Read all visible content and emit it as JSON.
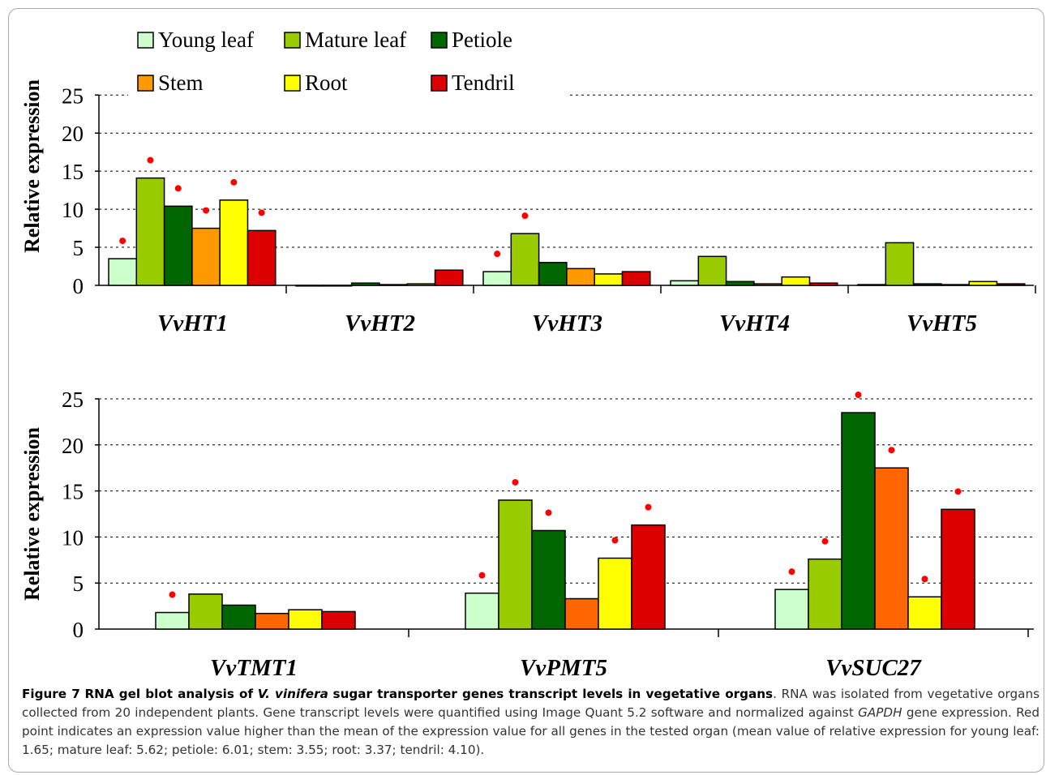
{
  "colors": {
    "young_leaf": "#ccffcc",
    "mature_leaf": "#99cc00",
    "petiole": "#006600",
    "stem_top": "#ff9900",
    "stem_bottom": "#ff6600",
    "root": "#ffff00",
    "tendril": "#dd0000",
    "marker": "#ff0000"
  },
  "caption": {
    "label": "Figure 7",
    "title_part1": "RNA gel blot analysis of",
    "title_species": "V. vinifera",
    "title_part2": "sugar transporter genes transcript levels in vegetative organs",
    "body_part1": ". RNA was isolated from vegetative organs collected from 20 independent plants. Gene transcript levels were quantified using Image Quant 5.2 software and normalized against",
    "body_gene": "GAPDH",
    "body_part2": "gene expression. Red point indicates an expression value higher than the mean of the expression value for all genes in the tested organ (mean value of relative expression for young leaf: 1.65; mature leaf: 5.62; petiole: 6.01; stem: 3.55; root: 3.37; tendril: 4.10)."
  },
  "chart_data": [
    {
      "type": "bar",
      "ylabel": "Relative expression",
      "ylim": [
        0,
        25
      ],
      "yticks": [
        0,
        5,
        10,
        15,
        20,
        25
      ],
      "grid": "dashed horizontal",
      "legend_position": "top",
      "categories": [
        "VvHT1",
        "VvHT2",
        "VvHT3",
        "VvHT4",
        "VvHT5"
      ],
      "series": [
        {
          "name": "Young leaf",
          "values": [
            3.5,
            0.0,
            1.8,
            0.6,
            0.1
          ],
          "marked": [
            true,
            false,
            true,
            false,
            false
          ]
        },
        {
          "name": "Mature leaf",
          "values": [
            14.1,
            0.0,
            6.8,
            3.8,
            5.6
          ],
          "marked": [
            true,
            false,
            true,
            false,
            false
          ]
        },
        {
          "name": "Petiole",
          "values": [
            10.4,
            0.3,
            3.0,
            0.5,
            0.2
          ],
          "marked": [
            true,
            false,
            false,
            false,
            false
          ]
        },
        {
          "name": "Stem",
          "values": [
            7.5,
            0.1,
            2.2,
            0.2,
            0.1
          ],
          "marked": [
            true,
            false,
            false,
            false,
            false
          ]
        },
        {
          "name": "Root",
          "values": [
            11.2,
            0.2,
            1.5,
            1.1,
            0.5
          ],
          "marked": [
            true,
            false,
            false,
            false,
            false
          ]
        },
        {
          "name": "Tendril",
          "values": [
            7.2,
            2.0,
            1.8,
            0.3,
            0.2
          ],
          "marked": [
            true,
            false,
            false,
            false,
            false
          ]
        }
      ]
    },
    {
      "type": "bar",
      "ylabel": "Relative expression",
      "ylim": [
        0,
        25
      ],
      "yticks": [
        0,
        5,
        10,
        15,
        20,
        25
      ],
      "grid": "dashed horizontal",
      "categories": [
        "VvTMT1",
        "VvPMT5",
        "VvSUC27"
      ],
      "series": [
        {
          "name": "Young leaf",
          "values": [
            1.8,
            3.9,
            4.3
          ],
          "marked": [
            true,
            true,
            true
          ]
        },
        {
          "name": "Mature leaf",
          "values": [
            3.8,
            14.0,
            7.6
          ],
          "marked": [
            false,
            true,
            true
          ]
        },
        {
          "name": "Petiole",
          "values": [
            2.6,
            10.7,
            23.5
          ],
          "marked": [
            false,
            true,
            true
          ]
        },
        {
          "name": "Stem",
          "values": [
            1.7,
            3.3,
            17.5
          ],
          "marked": [
            false,
            false,
            true
          ]
        },
        {
          "name": "Root",
          "values": [
            2.1,
            7.7,
            3.5
          ],
          "marked": [
            false,
            true,
            true
          ]
        },
        {
          "name": "Tendril",
          "values": [
            1.9,
            11.3,
            13.0
          ],
          "marked": [
            false,
            true,
            true
          ]
        }
      ]
    }
  ]
}
